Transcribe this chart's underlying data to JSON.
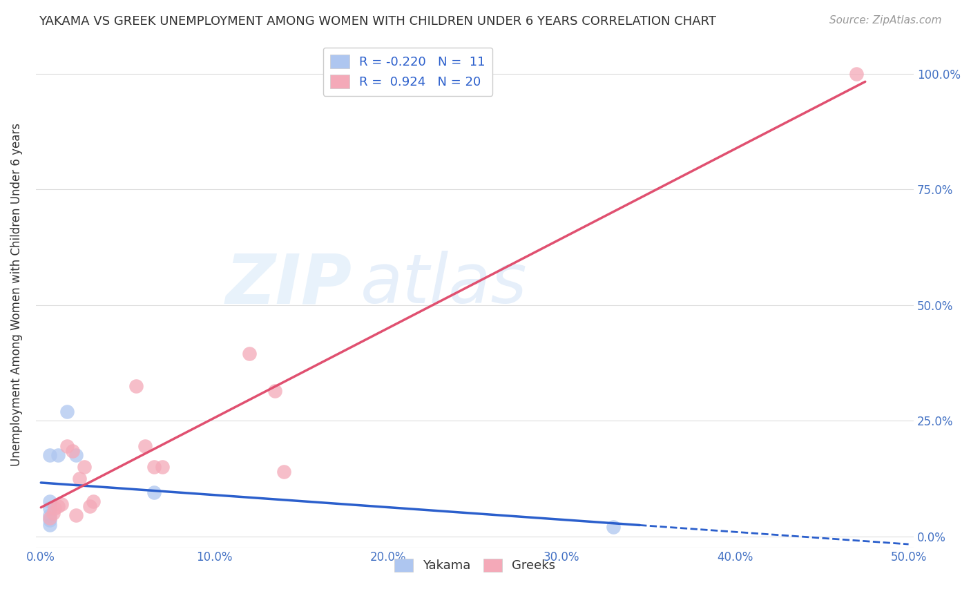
{
  "title": "YAKAMA VS GREEK UNEMPLOYMENT AMONG WOMEN WITH CHILDREN UNDER 6 YEARS CORRELATION CHART",
  "source": "Source: ZipAtlas.com",
  "ylabel": "Unemployment Among Women with Children Under 6 years",
  "xlim": [
    0.0,
    0.5
  ],
  "ylim": [
    0.0,
    1.05
  ],
  "yakama_points": [
    [
      0.005,
      0.175
    ],
    [
      0.01,
      0.175
    ],
    [
      0.005,
      0.075
    ],
    [
      0.005,
      0.06
    ],
    [
      0.005,
      0.045
    ],
    [
      0.005,
      0.035
    ],
    [
      0.005,
      0.025
    ],
    [
      0.015,
      0.27
    ],
    [
      0.02,
      0.175
    ],
    [
      0.065,
      0.095
    ],
    [
      0.33,
      0.02
    ]
  ],
  "greek_points": [
    [
      0.005,
      0.04
    ],
    [
      0.007,
      0.05
    ],
    [
      0.008,
      0.06
    ],
    [
      0.01,
      0.065
    ],
    [
      0.012,
      0.07
    ],
    [
      0.015,
      0.195
    ],
    [
      0.018,
      0.185
    ],
    [
      0.02,
      0.045
    ],
    [
      0.022,
      0.125
    ],
    [
      0.025,
      0.15
    ],
    [
      0.028,
      0.065
    ],
    [
      0.03,
      0.075
    ],
    [
      0.055,
      0.325
    ],
    [
      0.06,
      0.195
    ],
    [
      0.065,
      0.15
    ],
    [
      0.07,
      0.15
    ],
    [
      0.12,
      0.395
    ],
    [
      0.135,
      0.315
    ],
    [
      0.14,
      0.14
    ],
    [
      0.47,
      1.0
    ]
  ],
  "yakama_line_color": "#2b5fcc",
  "greek_line_color": "#e05070",
  "yakama_scatter_color": "#aec6f0",
  "greek_scatter_color": "#f4a9b8",
  "watermark_zip": "ZIP",
  "watermark_atlas": "atlas",
  "background_color": "#ffffff",
  "grid_color": "#dddddd",
  "x_tick_vals": [
    0.0,
    0.1,
    0.2,
    0.3,
    0.4,
    0.5
  ],
  "y_tick_vals": [
    0.0,
    0.25,
    0.5,
    0.75,
    1.0
  ],
  "legend_r_label1": "R = -0.220   N =  11",
  "legend_r_label2": "R =  0.924   N = 20",
  "legend_name1": "Yakama",
  "legend_name2": "Greeks",
  "title_fontsize": 13,
  "source_fontsize": 11,
  "tick_fontsize": 12,
  "legend_fontsize": 13
}
